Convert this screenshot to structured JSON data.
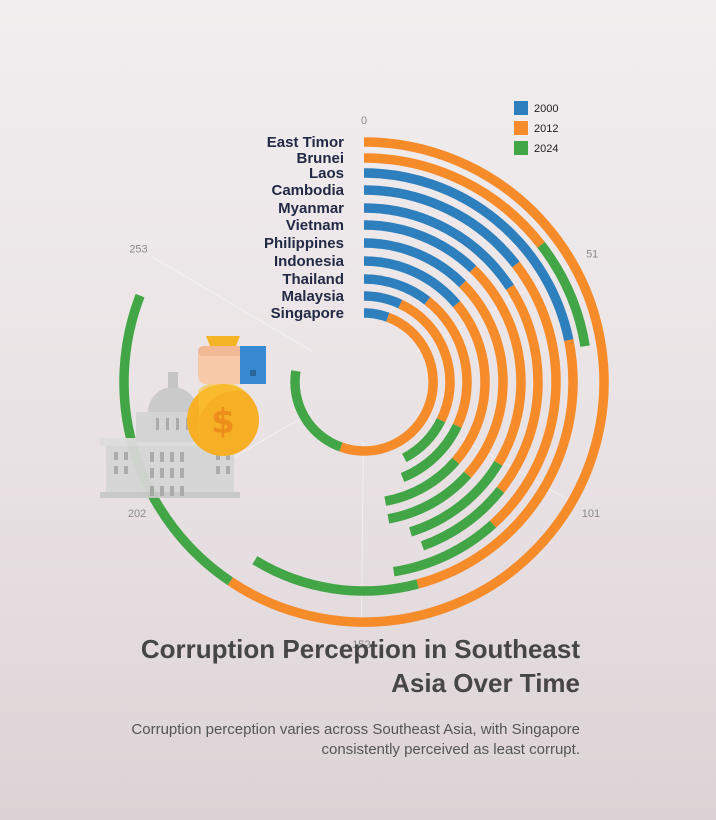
{
  "chart_data": {
    "type": "radial-bar",
    "title": "Corruption Perception in Southeast Asia Over Time",
    "subtitle": "Corruption perception varies across Southeast Asia, with Singapore consistently perceived as least corrupt.",
    "categories": [
      "East Timor",
      "Brunei",
      "Laos",
      "Cambodia",
      "Myanmar",
      "Vietnam",
      "Philippines",
      "Indonesia",
      "Thailand",
      "Malaysia",
      "Singapore"
    ],
    "series": [
      {
        "name": "2000",
        "color": "#2e7fbd",
        "values": [
          null,
          null,
          66,
          44,
          48,
          37,
          38,
          42,
          32,
          21,
          17
        ]
      },
      {
        "name": "2012",
        "color": "#f68b2a",
        "values": [
          180,
          44,
          73,
          72,
          60,
          65,
          73,
          68,
          65,
          77,
          151
        ]
      },
      {
        "name": "2024",
        "color": "#42a546",
        "values": [
          65,
          24,
          39,
          28,
          27,
          35,
          32,
          33,
          36,
          30,
          67
        ]
      }
    ],
    "axis": {
      "min": 0,
      "max": 303,
      "ticks": [
        0,
        51,
        101,
        152,
        202,
        253
      ]
    },
    "legend_position": "top-right"
  }
}
